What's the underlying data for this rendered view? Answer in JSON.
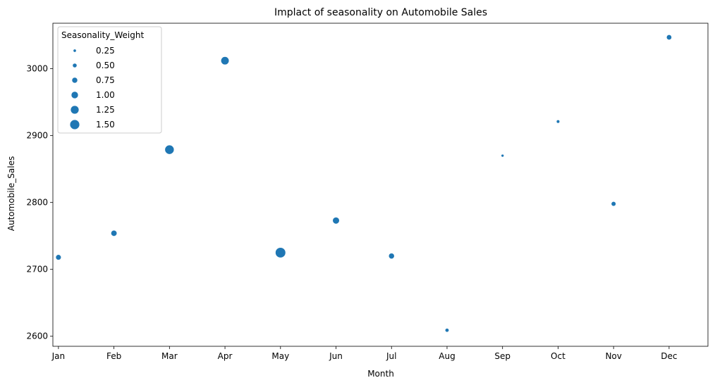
{
  "chart_data": {
    "type": "scatter",
    "title": "Implact of seasonality on Automobile Sales",
    "xlabel": "Month",
    "ylabel": "Automobile_Sales",
    "categories": [
      "Jan",
      "Feb",
      "Mar",
      "Apr",
      "May",
      "Jun",
      "Jul",
      "Aug",
      "Sep",
      "Oct",
      "Nov",
      "Dec"
    ],
    "values": [
      2718,
      2754,
      2879,
      3012,
      2725,
      2773,
      2720,
      2609,
      2870,
      2921,
      2798,
      3047
    ],
    "sizes": [
      0.7,
      0.8,
      1.4,
      1.2,
      1.6,
      0.95,
      0.75,
      0.4,
      0.2,
      0.3,
      0.55,
      0.65
    ],
    "ylim": [
      2585,
      3068
    ],
    "yticks": [
      2600,
      2700,
      2800,
      2900,
      3000
    ],
    "grid": false,
    "color": "#1f77b4",
    "legend": {
      "title": "Seasonality_Weight",
      "placement": "upper-left",
      "entries": [
        "0.25",
        "0.50",
        "0.75",
        "1.00",
        "1.25",
        "1.50"
      ],
      "entry_values": [
        0.25,
        0.5,
        0.75,
        1.0,
        1.25,
        1.5
      ]
    }
  }
}
